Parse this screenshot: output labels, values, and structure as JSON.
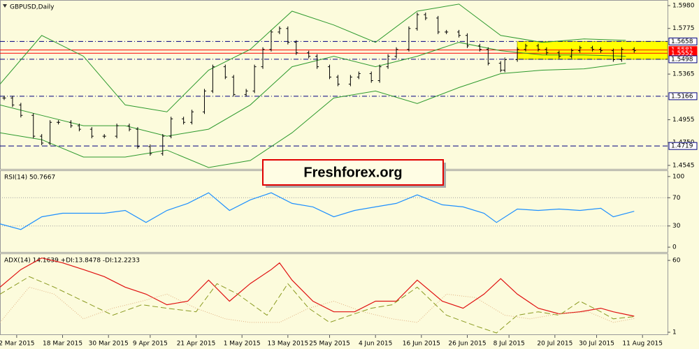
{
  "chart_data": [
    {
      "type": "ohlc",
      "title": "GBPUSD,Daily",
      "watermark": "Freshforex.org",
      "color": "#000000",
      "x": [
        1,
        3,
        5,
        8,
        10,
        12,
        14,
        17,
        19,
        22,
        25,
        28,
        31,
        33,
        36,
        39,
        41,
        44,
        46,
        49,
        51,
        54,
        56,
        59,
        61,
        63,
        65,
        67,
        69,
        71,
        74,
        76,
        79,
        81,
        84,
        86,
        89,
        91,
        93,
        95,
        98,
        100,
        102,
        105,
        107,
        110,
        112,
        115,
        117,
        120,
        121,
        124,
        126,
        129,
        131,
        134,
        137,
        139,
        142,
        144,
        147,
        149,
        152
      ],
      "values": [
        1.515,
        1.5088,
        1.4994,
        1.4807,
        1.4745,
        1.4932,
        1.4932,
        1.4901,
        1.487,
        1.4807,
        1.4807,
        1.4901,
        1.487,
        1.4714,
        1.4651,
        1.4807,
        1.4963,
        1.4932,
        1.5026,
        1.5213,
        1.5431,
        1.5338,
        1.5182,
        1.5213,
        1.5431,
        1.5587,
        1.5743,
        1.5774,
        1.565,
        1.5556,
        1.5525,
        1.5431,
        1.5338,
        1.5275,
        1.5338,
        1.5369,
        1.5306,
        1.5431,
        1.5525,
        1.5587,
        1.5774,
        1.5899,
        1.5868,
        1.5743,
        1.5743,
        1.5712,
        1.5618,
        1.5587,
        1.5462,
        1.54,
        1.5494,
        1.5587,
        1.5618,
        1.5587,
        1.5556,
        1.5525,
        1.5575,
        1.56,
        1.5587,
        1.5575,
        1.5494,
        1.5587,
        1.5575
      ],
      "bands": {
        "color": "#2e9a2e",
        "x": [
          0,
          10,
          20,
          30,
          40,
          50,
          60,
          70,
          80,
          90,
          100,
          110,
          120,
          130,
          140,
          150
        ],
        "upper": [
          1.5275,
          1.5712,
          1.5525,
          1.5088,
          1.5026,
          1.54,
          1.5587,
          1.593,
          1.5806,
          1.565,
          1.593,
          1.5993,
          1.5712,
          1.565,
          1.5681,
          1.5668
        ],
        "middle": [
          1.5088,
          1.4994,
          1.4901,
          1.4901,
          1.4807,
          1.487,
          1.5088,
          1.5431,
          1.5525,
          1.5431,
          1.5525,
          1.565,
          1.5575,
          1.5537,
          1.5537,
          1.5525
        ],
        "lower": [
          1.4838,
          1.4776,
          1.462,
          1.462,
          1.4682,
          1.4526,
          1.4589,
          1.4838,
          1.515,
          1.5213,
          1.51,
          1.5244,
          1.5369,
          1.54,
          1.5412,
          1.5462
        ]
      },
      "levels": [
        {
          "value": 1.5658,
          "style": "dashdot",
          "color": "#000080"
        },
        {
          "value": 1.5581,
          "style": "solid",
          "color": "#ff0000"
        },
        {
          "value": 1.5552,
          "style": "solid",
          "color": "#ff0000"
        },
        {
          "value": 1.5498,
          "style": "dashdot",
          "color": "#000080"
        },
        {
          "value": 1.5166,
          "style": "dashdot",
          "color": "#000080"
        },
        {
          "value": 1.4719,
          "style": "dashed",
          "color": "#000080"
        }
      ],
      "zone": {
        "from": 1.5498,
        "to": 1.5658,
        "x_start": 124,
        "color": "#ffff00"
      },
      "xlim": [
        0,
        160
      ],
      "ylim": [
        1.4507,
        1.6024
      ],
      "yticks": [
        {
          "value": 1.598,
          "label": "1.5980"
        },
        1.5775,
        1.5365,
        1.4955,
        {
          "value": 1.475,
          "label": "1.4750"
        },
        1.4545
      ]
    },
    {
      "type": "line",
      "title": "RSI(14) 50.7667",
      "series": [
        {
          "color": "#1e90ff",
          "dash": "solid",
          "x": [
            0,
            5,
            10,
            15,
            20,
            25,
            30,
            35,
            40,
            45,
            50,
            55,
            60,
            65,
            70,
            75,
            80,
            85,
            90,
            95,
            100,
            106,
            111,
            116,
            119,
            124,
            129,
            134,
            139,
            144,
            147,
            152
          ],
          "values": [
            33,
            25,
            43,
            48,
            48,
            48,
            52,
            35,
            52,
            62,
            77,
            52,
            67,
            77,
            62,
            57,
            43,
            52,
            57,
            62,
            74,
            60,
            57,
            48,
            35,
            54,
            52,
            54,
            52,
            55,
            43,
            50.7667
          ]
        }
      ],
      "levels": [
        70,
        30
      ],
      "xlim": [
        0,
        160
      ],
      "ylim": [
        -7.8,
        107.8
      ],
      "yticks": [
        100,
        70,
        30,
        0
      ]
    },
    {
      "type": "line",
      "title": "ADX(14) 14.1639 +DI:13.8478 -DI:12.2233",
      "series": [
        {
          "color": "#e01010",
          "dash": "solid",
          "x": [
            0,
            5,
            10,
            15,
            20,
            25,
            30,
            35,
            40,
            45,
            50,
            55,
            60,
            65,
            67,
            70,
            75,
            80,
            85,
            90,
            95,
            100,
            106,
            111,
            116,
            120,
            124,
            129,
            134,
            139,
            144,
            147,
            152
          ],
          "values": [
            38,
            52.5,
            62,
            58,
            52.5,
            46.7,
            38,
            32.3,
            23.6,
            26.5,
            43.8,
            26.5,
            41,
            52.5,
            58,
            43.8,
            26.5,
            17.8,
            17.8,
            26.5,
            26.5,
            43.8,
            26.5,
            20.7,
            32.3,
            45,
            32.3,
            20.7,
            16.1,
            17.8,
            20.7,
            17.8,
            14.1639
          ]
        },
        {
          "color": "#8a9a20",
          "dash": "dashed",
          "x": [
            0,
            7,
            13,
            20,
            27,
            34,
            40,
            47,
            52,
            57,
            64,
            69,
            74,
            79,
            84,
            89,
            94,
            100,
            107,
            114,
            119,
            124,
            129,
            134,
            139,
            144,
            147,
            152
          ],
          "values": [
            32.3,
            46.7,
            38,
            26.5,
            15,
            23.6,
            20.7,
            17.8,
            40.9,
            32.3,
            15,
            40.9,
            20.7,
            9.1,
            15,
            20.7,
            23.6,
            38,
            15,
            6.2,
            0.4,
            15,
            17.8,
            15,
            26.5,
            17.8,
            12,
            13.8478
          ]
        },
        {
          "color": "#e0b080",
          "dash": "dotted",
          "x": [
            0,
            7,
            13,
            20,
            27,
            34,
            40,
            47,
            54,
            60,
            67,
            74,
            80,
            87,
            94,
            100,
            107,
            114,
            121,
            127,
            134,
            141,
            147,
            152
          ],
          "values": [
            9.1,
            38,
            32.3,
            12,
            20.7,
            26.5,
            32.3,
            20.7,
            12,
            9.1,
            9.1,
            20.7,
            26.5,
            17.8,
            12,
            9.1,
            32.3,
            29.4,
            15,
            12,
            16.1,
            17.8,
            9.1,
            12.2233
          ]
        }
      ],
      "xlim": [
        0,
        160
      ],
      "ylim": [
        -1.3,
        65.2
      ],
      "yticks": [
        60,
        1
      ],
      "xticks": [
        {
          "value": 4,
          "label": "2 Mar 2015"
        },
        {
          "value": 15,
          "label": "18 Mar 2015"
        },
        {
          "value": 26,
          "label": "30 Mar 2015"
        },
        {
          "value": 36,
          "label": "9 Apr 2015"
        },
        {
          "value": 47,
          "label": "21 Apr 2015"
        },
        {
          "value": 58,
          "label": "1 May 2015"
        },
        {
          "value": 69,
          "label": "13 May 2015"
        },
        {
          "value": 79,
          "label": "25 May 2015"
        },
        {
          "value": 90,
          "label": "4 Jun 2015"
        },
        {
          "value": 101,
          "label": "16 Jun 2015"
        },
        {
          "value": 112,
          "label": "26 Jun 2015"
        },
        {
          "value": 122,
          "label": "8 Jul 2015"
        },
        {
          "value": 133,
          "label": "20 Jul 2015"
        },
        {
          "value": 143,
          "label": "30 Jul 2015"
        },
        {
          "value": 154,
          "label": "11 Aug 2015"
        }
      ]
    }
  ]
}
